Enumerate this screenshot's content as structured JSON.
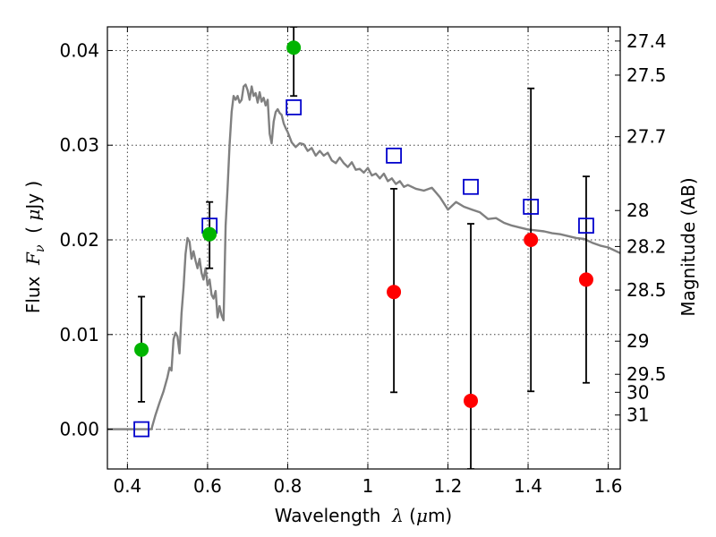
{
  "chart_data": {
    "type": "scatter",
    "xlim": [
      0.35,
      1.63
    ],
    "ylim": [
      -0.0042,
      0.0425
    ],
    "x_ticks": [
      0.4,
      0.6,
      0.8,
      1.0,
      1.2,
      1.4,
      1.6
    ],
    "x_tick_labels": [
      "0.4",
      "0.6",
      "0.8",
      "1",
      "1.2",
      "1.4",
      "1.6"
    ],
    "y_ticks": [
      0.0,
      0.01,
      0.02,
      0.03,
      0.04
    ],
    "y_tick_labels": [
      "0.00",
      "0.01",
      "0.02",
      "0.03",
      "0.04"
    ],
    "xlabel": {
      "prefix": "Wavelength  ",
      "symbol": "λ",
      "unit_open": " (",
      "unit_mu": "μ",
      "unit_rest": "m)"
    },
    "ylabel": {
      "prefix": "Flux  ",
      "symbol": "F",
      "subscript": "ν",
      "unit_open": "  ( ",
      "unit_mu": "μ",
      "unit_rest": "Jy )"
    },
    "right_axis": {
      "label": "Magnitude (AB)",
      "tick_labels": [
        "27.4",
        "27.5",
        "27.7",
        "28",
        "28.2",
        "28.5",
        "29",
        "29.5",
        "30",
        "31"
      ],
      "tick_flux": [
        0.041,
        0.0374,
        0.0309,
        0.0231,
        0.0193,
        0.0147,
        0.0093,
        0.0058,
        0.0039,
        0.0015
      ]
    },
    "grid": true,
    "series": [
      {
        "color": "#808080",
        "kind": "line",
        "x": [
          0.35,
          0.46,
          0.47,
          0.48,
          0.49,
          0.5,
          0.505,
          0.51,
          0.515,
          0.52,
          0.525,
          0.53,
          0.535,
          0.54,
          0.545,
          0.55,
          0.555,
          0.56,
          0.565,
          0.57,
          0.575,
          0.58,
          0.585,
          0.59,
          0.595,
          0.6,
          0.605,
          0.61,
          0.615,
          0.62,
          0.625,
          0.63,
          0.635,
          0.64,
          0.645,
          0.65,
          0.655,
          0.66,
          0.665,
          0.67,
          0.675,
          0.68,
          0.685,
          0.69,
          0.695,
          0.7,
          0.705,
          0.71,
          0.715,
          0.72,
          0.725,
          0.73,
          0.735,
          0.74,
          0.745,
          0.75,
          0.755,
          0.76,
          0.765,
          0.77,
          0.775,
          0.78,
          0.785,
          0.79,
          0.795,
          0.8,
          0.81,
          0.82,
          0.83,
          0.84,
          0.85,
          0.86,
          0.87,
          0.88,
          0.89,
          0.9,
          0.91,
          0.92,
          0.93,
          0.94,
          0.95,
          0.96,
          0.97,
          0.98,
          0.99,
          1.0,
          1.01,
          1.02,
          1.03,
          1.04,
          1.05,
          1.06,
          1.07,
          1.08,
          1.09,
          1.1,
          1.12,
          1.14,
          1.16,
          1.18,
          1.2,
          1.22,
          1.24,
          1.26,
          1.28,
          1.3,
          1.32,
          1.34,
          1.36,
          1.38,
          1.4,
          1.42,
          1.44,
          1.46,
          1.48,
          1.5,
          1.52,
          1.54,
          1.56,
          1.58,
          1.6,
          1.63
        ],
        "y": [
          0.0,
          0.0,
          0.0015,
          0.0028,
          0.004,
          0.0055,
          0.0065,
          0.0062,
          0.0095,
          0.0102,
          0.0098,
          0.008,
          0.0122,
          0.015,
          0.0185,
          0.0202,
          0.0198,
          0.018,
          0.0188,
          0.0178,
          0.017,
          0.018,
          0.0165,
          0.0158,
          0.017,
          0.0152,
          0.0158,
          0.0142,
          0.0138,
          0.0146,
          0.0118,
          0.013,
          0.012,
          0.0115,
          0.0215,
          0.0255,
          0.03,
          0.0335,
          0.0352,
          0.0348,
          0.0352,
          0.0345,
          0.0348,
          0.0362,
          0.0364,
          0.0358,
          0.0348,
          0.0362,
          0.0352,
          0.0355,
          0.0345,
          0.0356,
          0.0346,
          0.035,
          0.0342,
          0.0348,
          0.0312,
          0.0302,
          0.0325,
          0.0335,
          0.0338,
          0.0334,
          0.0332,
          0.0323,
          0.0318,
          0.0314,
          0.0303,
          0.0298,
          0.0302,
          0.0301,
          0.0294,
          0.0297,
          0.0289,
          0.0294,
          0.0289,
          0.0292,
          0.0284,
          0.0281,
          0.0287,
          0.0281,
          0.0277,
          0.0282,
          0.0274,
          0.0275,
          0.0271,
          0.0276,
          0.0268,
          0.027,
          0.0265,
          0.027,
          0.0262,
          0.0265,
          0.0259,
          0.0262,
          0.0256,
          0.0258,
          0.0254,
          0.0252,
          0.0255,
          0.0245,
          0.0232,
          0.024,
          0.0235,
          0.0232,
          0.0229,
          0.0222,
          0.0223,
          0.0218,
          0.0215,
          0.0213,
          0.0211,
          0.021,
          0.0209,
          0.0207,
          0.0206,
          0.0204,
          0.0202,
          0.0201,
          0.0197,
          0.0194,
          0.0192,
          0.0186
        ]
      },
      {
        "color": "#0000cc",
        "kind": "open-square",
        "x": [
          0.435,
          0.605,
          0.815,
          1.065,
          1.257,
          1.407,
          1.545
        ],
        "y": [
          0.0,
          0.0215,
          0.034,
          0.0289,
          0.0256,
          0.0235,
          0.0215
        ]
      },
      {
        "color": "#00b400",
        "kind": "filled-circle",
        "x": [
          0.435,
          0.605,
          0.815
        ],
        "y": [
          0.0084,
          0.0206,
          0.0403
        ],
        "yerr_low": [
          0.0029,
          0.017,
          0.0352
        ],
        "yerr_high": [
          0.014,
          0.024,
          0.0425
        ]
      },
      {
        "color": "#ff0000",
        "kind": "filled-circle",
        "x": [
          1.065,
          1.257,
          1.407,
          1.545
        ],
        "y": [
          0.0145,
          0.003,
          0.02,
          0.0158
        ],
        "yerr_low": [
          0.0039,
          -0.0042,
          0.004,
          0.0049
        ],
        "yerr_high": [
          0.0254,
          0.0217,
          0.036,
          0.0267
        ]
      }
    ],
    "reference_line": {
      "y": 0.0,
      "style": "dash-dot",
      "color": "#808080"
    }
  }
}
